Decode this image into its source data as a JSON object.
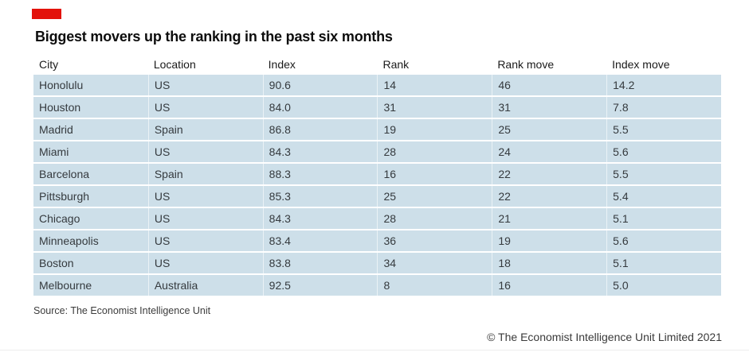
{
  "brand": {
    "accent_red": "#e3120b",
    "row_bg": "#cddfe9"
  },
  "header": {
    "title": "Biggest movers up the ranking in the past six months"
  },
  "table": {
    "columns": [
      "City",
      "Location",
      "Index",
      "Rank",
      "Rank move",
      "Index move"
    ],
    "rows": [
      [
        "Honolulu",
        "US",
        "90.6",
        "14",
        "46",
        "14.2"
      ],
      [
        "Houston",
        "US",
        "84.0",
        "31",
        "31",
        "7.8"
      ],
      [
        "Madrid",
        "Spain",
        "86.8",
        "19",
        "25",
        "5.5"
      ],
      [
        "Miami",
        "US",
        "84.3",
        "28",
        "24",
        "5.6"
      ],
      [
        "Barcelona",
        "Spain",
        "88.3",
        "16",
        "22",
        "5.5"
      ],
      [
        "Pittsburgh",
        "US",
        "85.3",
        "25",
        "22",
        "5.4"
      ],
      [
        "Chicago",
        "US",
        "84.3",
        "28",
        "21",
        "5.1"
      ],
      [
        "Minneapolis",
        "US",
        "83.4",
        "36",
        "19",
        "5.6"
      ],
      [
        "Boston",
        "US",
        "83.8",
        "34",
        "18",
        "5.1"
      ],
      [
        "Melbourne",
        "Australia",
        "92.5",
        "8",
        "16",
        "5.0"
      ]
    ]
  },
  "footer": {
    "source": "Source: The Economist Intelligence Unit",
    "copyright": "© The Economist Intelligence Unit Limited 2021"
  },
  "chart_data": {
    "type": "table",
    "title": "Biggest movers up the ranking in the past six months",
    "columns": [
      "City",
      "Location",
      "Index",
      "Rank",
      "Rank move",
      "Index move"
    ],
    "rows": [
      [
        "Honolulu",
        "US",
        90.6,
        14,
        46,
        14.2
      ],
      [
        "Houston",
        "US",
        84.0,
        31,
        31,
        7.8
      ],
      [
        "Madrid",
        "Spain",
        86.8,
        19,
        25,
        5.5
      ],
      [
        "Miami",
        "US",
        84.3,
        28,
        24,
        5.6
      ],
      [
        "Barcelona",
        "Spain",
        88.3,
        16,
        22,
        5.5
      ],
      [
        "Pittsburgh",
        "US",
        85.3,
        25,
        22,
        5.4
      ],
      [
        "Chicago",
        "US",
        84.3,
        28,
        21,
        5.1
      ],
      [
        "Minneapolis",
        "US",
        83.4,
        36,
        19,
        5.6
      ],
      [
        "Boston",
        "US",
        83.8,
        34,
        18,
        5.1
      ],
      [
        "Melbourne",
        "Australia",
        92.5,
        8,
        16,
        5.0
      ]
    ],
    "source": "Source: The Economist Intelligence Unit",
    "notes": "Ranking movement table; no axes; row shading light blue"
  }
}
